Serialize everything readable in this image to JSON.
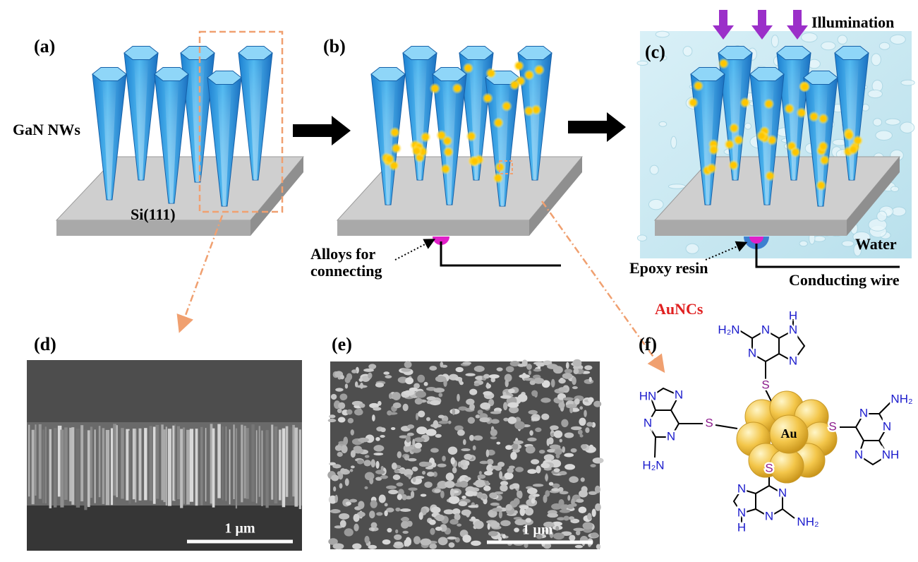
{
  "panels": {
    "a": {
      "label": "(a)",
      "nanowires": "GaN NWs",
      "substrate": "Si(111)"
    },
    "b": {
      "label": "(b)",
      "contact": [
        "Alloys for",
        "connecting"
      ]
    },
    "c": {
      "label": "(c)",
      "light": "Illumination",
      "medium": "Water",
      "encapsulant": "Epoxy resin",
      "wire": "Conducting wire"
    },
    "d": {
      "label": "(d)",
      "scale_bar": "1 µm"
    },
    "e": {
      "label": "(e)",
      "scale_bar": "1 µm"
    },
    "f": {
      "label": "(f)",
      "cluster": "AuNCs",
      "core": "Au",
      "ligands": {
        "top": [
          "H₂N",
          "N",
          "N",
          "N",
          "H",
          "N",
          "S"
        ],
        "left": [
          "HN",
          "N",
          "N",
          "N",
          "H₂N",
          "S"
        ],
        "right": [
          "NH₂",
          "N",
          "N",
          "N",
          "NH",
          "S"
        ],
        "bottom": [
          "S",
          "N",
          "N",
          "H",
          "N",
          "N",
          "NH₂"
        ]
      }
    }
  }
}
